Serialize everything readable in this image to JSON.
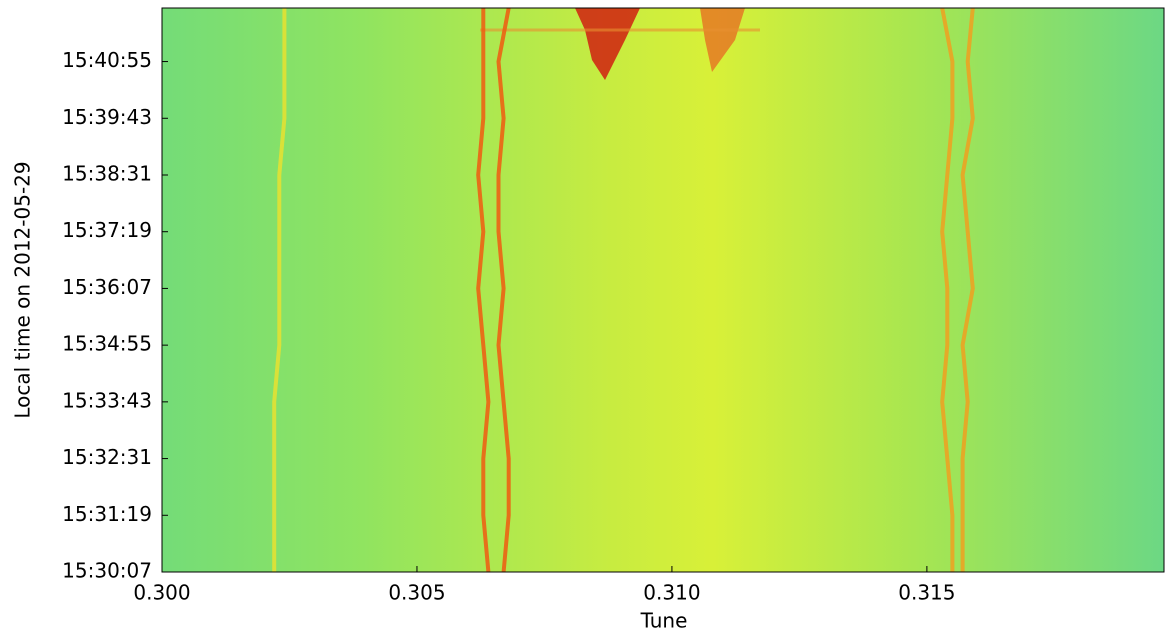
{
  "chart_data": {
    "type": "line",
    "x_label": "Tune",
    "y_label": "Local time on 2012-05-29",
    "xlim": [
      0.3,
      0.31965
    ],
    "xticks": [
      {
        "value": 0.3,
        "label": "0.300"
      },
      {
        "value": 0.305,
        "label": "0.305"
      },
      {
        "value": 0.31,
        "label": "0.310"
      },
      {
        "value": 0.315,
        "label": "0.315"
      }
    ],
    "ylim": [
      "15:30:07",
      "15:42:03"
    ],
    "yticks": [
      "15:30:07",
      "15:31:19",
      "15:32:31",
      "15:33:43",
      "15:34:55",
      "15:36:07",
      "15:37:19",
      "15:38:31",
      "15:39:43",
      "15:40:55"
    ],
    "y": [
      "15:30:07",
      "15:31:19",
      "15:32:31",
      "15:33:43",
      "15:34:55",
      "15:36:07",
      "15:37:19",
      "15:38:31",
      "15:39:43",
      "15:40:55",
      "15:42:03"
    ],
    "series": [
      {
        "color": "#e8e030",
        "values": [
          0.3022,
          0.3022,
          0.3022,
          0.3022,
          0.3023,
          0.3023,
          0.3023,
          0.3023,
          0.3024,
          0.3024,
          0.3024
        ]
      },
      {
        "color": "#f05a10",
        "values": [
          0.3064,
          0.3063,
          0.3063,
          0.3064,
          0.3063,
          0.3062,
          0.3063,
          0.3062,
          0.3063,
          0.3063,
          0.3063
        ]
      },
      {
        "color": "#f05a10",
        "values": [
          0.3067,
          0.3068,
          0.3068,
          0.3067,
          0.3066,
          0.3067,
          0.3066,
          0.3066,
          0.3067,
          0.3066,
          0.3068
        ]
      },
      {
        "color": "#f0a020",
        "values": [
          0.3155,
          0.3155,
          0.3154,
          0.3153,
          0.3154,
          0.3154,
          0.3153,
          0.3154,
          0.3155,
          0.3155,
          0.3153
        ]
      },
      {
        "color": "#f0a020",
        "values": [
          0.3157,
          0.3157,
          0.3157,
          0.3158,
          0.3157,
          0.3159,
          0.3158,
          0.3157,
          0.3159,
          0.3158,
          0.3159
        ]
      }
    ]
  }
}
